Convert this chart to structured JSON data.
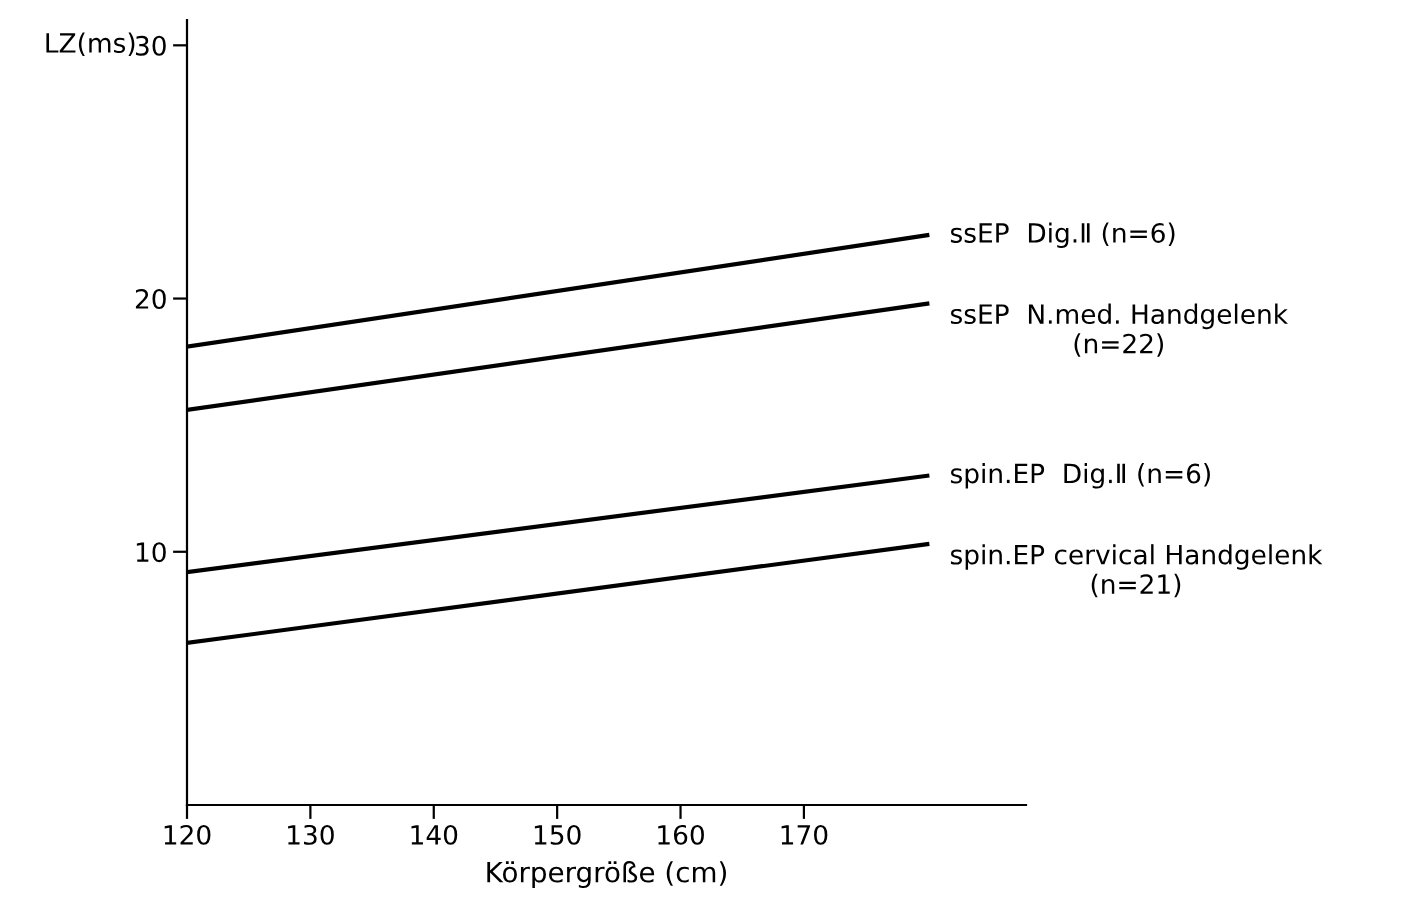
{
  "chart_data": {
    "type": "line",
    "xlabel": "Körpergröße (cm)",
    "ylabel": "LZ(ms)",
    "xlim": [
      120,
      188
    ],
    "xticks": [
      120,
      130,
      140,
      150,
      160,
      170
    ],
    "ylim": [
      0,
      31
    ],
    "yticks": [
      10,
      20,
      30
    ],
    "grid": false,
    "legend": false,
    "marker": "none",
    "line_style": "solid",
    "x": [
      120,
      180
    ],
    "series": [
      {
        "name": "ssEP  Dig.Ⅱ (n=6)",
        "color": "#000000",
        "values": [
          18.1,
          22.5
        ]
      },
      {
        "name": "ssEP  N.med. Handgelenk\n(n=22)",
        "color": "#000000",
        "values": [
          15.6,
          19.8
        ]
      },
      {
        "name": "spin.EP  Dig.Ⅱ (n=6)",
        "color": "#000000",
        "values": [
          9.2,
          13.0
        ]
      },
      {
        "name": "spin.EP cervical Handgelenk\n(n=21)",
        "color": "#000000",
        "values": [
          6.4,
          10.3
        ]
      }
    ]
  }
}
